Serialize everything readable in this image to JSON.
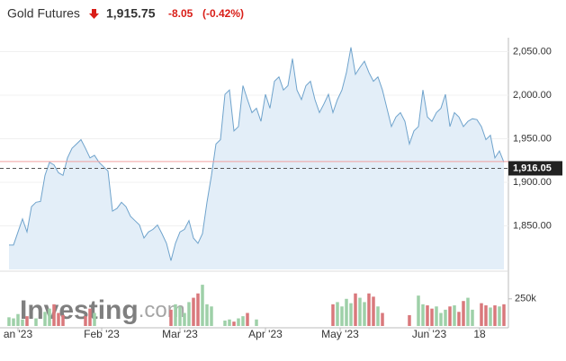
{
  "chart_data": {
    "type": "area",
    "title": "Gold Futures",
    "price": "1,915.75",
    "change": "-8.05",
    "change_pct": "(-0.42%)",
    "values": [
      1828,
      1828,
      1843,
      1858,
      1843,
      1872,
      1877,
      1878,
      1908,
      1923,
      1920,
      1911,
      1908,
      1928,
      1939,
      1944,
      1949,
      1939,
      1928,
      1931,
      1923,
      1918,
      1913,
      1867,
      1870,
      1877,
      1872,
      1861,
      1856,
      1851,
      1836,
      1843,
      1846,
      1851,
      1841,
      1830,
      1810,
      1830,
      1843,
      1846,
      1856,
      1836,
      1830,
      1841,
      1877,
      1908,
      1944,
      1949,
      2001,
      2006,
      1959,
      1964,
      2011,
      1995,
      1980,
      1985,
      1970,
      2001,
      1985,
      2016,
      2021,
      2006,
      2011,
      2042,
      2006,
      1995,
      2011,
      2016,
      1995,
      1980,
      1990,
      2001,
      1980,
      1995,
      2006,
      2026,
      2055,
      2024,
      2032,
      2039,
      2026,
      2016,
      2021,
      2006,
      1985,
      1964,
      1975,
      1980,
      1970,
      1944,
      1959,
      1964,
      2006,
      1975,
      1970,
      1980,
      1985,
      2001,
      1964,
      1980,
      1975,
      1964,
      1970,
      1973,
      1972,
      1964,
      1949,
      1954,
      1928,
      1936,
      1923
    ],
    "volume": [
      80000,
      70000,
      110000,
      60000,
      90000,
      null,
      70000,
      null,
      130000,
      160000,
      200000,
      120000,
      100000,
      null,
      null,
      null,
      null,
      90000,
      160000,
      120000,
      null,
      null,
      null,
      null,
      null,
      null,
      null,
      null,
      null,
      null,
      null,
      null,
      null,
      null,
      null,
      null,
      150000,
      200000,
      180000,
      120000,
      220000,
      260000,
      300000,
      380000,
      200000,
      180000,
      null,
      null,
      50000,
      60000,
      40000,
      70000,
      90000,
      120000,
      null,
      60000,
      null,
      null,
      null,
      null,
      null,
      null,
      null,
      null,
      null,
      null,
      null,
      null,
      null,
      null,
      null,
      null,
      200000,
      220000,
      180000,
      250000,
      210000,
      300000,
      260000,
      220000,
      300000,
      270000,
      180000,
      120000,
      null,
      null,
      null,
      null,
      null,
      100000,
      null,
      280000,
      200000,
      190000,
      160000,
      180000,
      120000,
      150000,
      180000,
      190000,
      130000,
      230000,
      260000,
      150000,
      null,
      210000,
      190000,
      170000,
      190000,
      180000,
      200000
    ],
    "color": "#6fa3cc",
    "fill": "#e3eef8",
    "up_color": "#9ed0a8",
    "down_color": "#d9787c",
    "ylim": [
      1800,
      2066
    ],
    "yticks": [
      {
        "value": 1850,
        "label": "1,850.00"
      },
      {
        "value": 1900,
        "label": "1,900.00"
      },
      {
        "value": 1950,
        "label": "1,950.00"
      },
      {
        "value": 2000,
        "label": "2,000.00"
      },
      {
        "value": 2050,
        "label": "2,050.00"
      }
    ],
    "vlim": [
      0,
      480000
    ],
    "vticks": [
      {
        "value": 250000,
        "label": "250k"
      }
    ],
    "xticks": [
      {
        "value": 2,
        "label": "an '23"
      },
      {
        "value": 20.6,
        "label": "Feb '23"
      },
      {
        "value": 38,
        "label": "Mar '23"
      },
      {
        "value": 57,
        "label": "Apr '23"
      },
      {
        "value": 73.6,
        "label": "May '23"
      },
      {
        "value": 93.4,
        "label": "Jun '23"
      },
      {
        "value": 104.6,
        "label": "18"
      }
    ],
    "last_price": {
      "value": 1916.05,
      "label": "1,916.05"
    },
    "prev_close": 1923.8,
    "watermark": [
      "Investing",
      ".com"
    ]
  }
}
